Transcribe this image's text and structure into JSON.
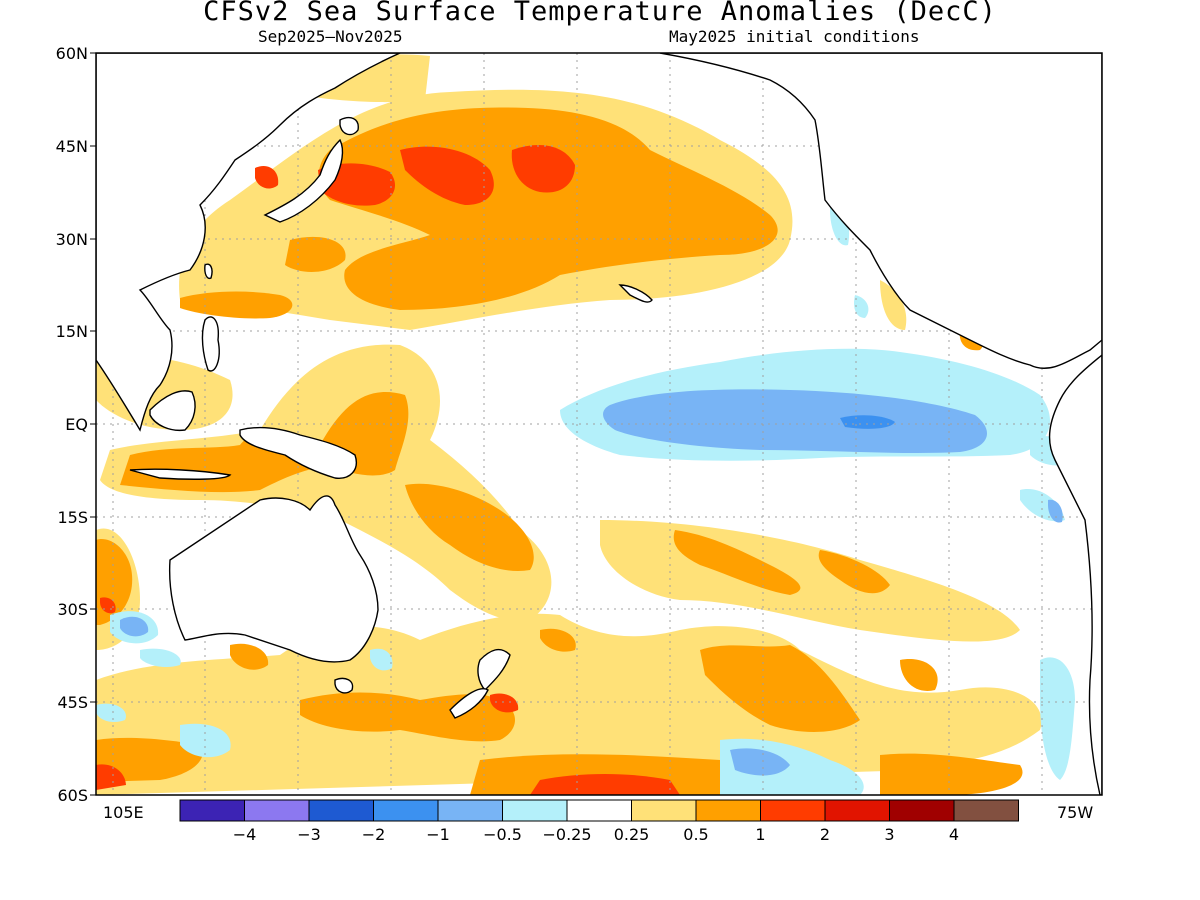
{
  "title": "CFSv2 Sea Surface Temperature Anomalies (DecC)",
  "season": "Sep2025–Nov2025",
  "initial_conditions": "May2025 initial conditions",
  "lat_labels": [
    "60N",
    "45N",
    "30N",
    "15N",
    "EQ",
    "15S",
    "30S",
    "45S",
    "60S"
  ],
  "lon_left_label": "105E",
  "lon_right_label": "75W",
  "colorbar": {
    "colors": [
      "#3c23b4",
      "#8c78f0",
      "#1e5ad2",
      "#3c91f0",
      "#78b4f5",
      "#b4f0fa",
      "#ffffff",
      "#ffe178",
      "#ffa000",
      "#ff3c00",
      "#e11400",
      "#a00000",
      "#825040"
    ],
    "labels": [
      "-4",
      "-3",
      "-2",
      "-1",
      "-0.5",
      "-0.25",
      "0.25",
      "0.5",
      "1",
      "2",
      "3",
      "4"
    ]
  }
}
